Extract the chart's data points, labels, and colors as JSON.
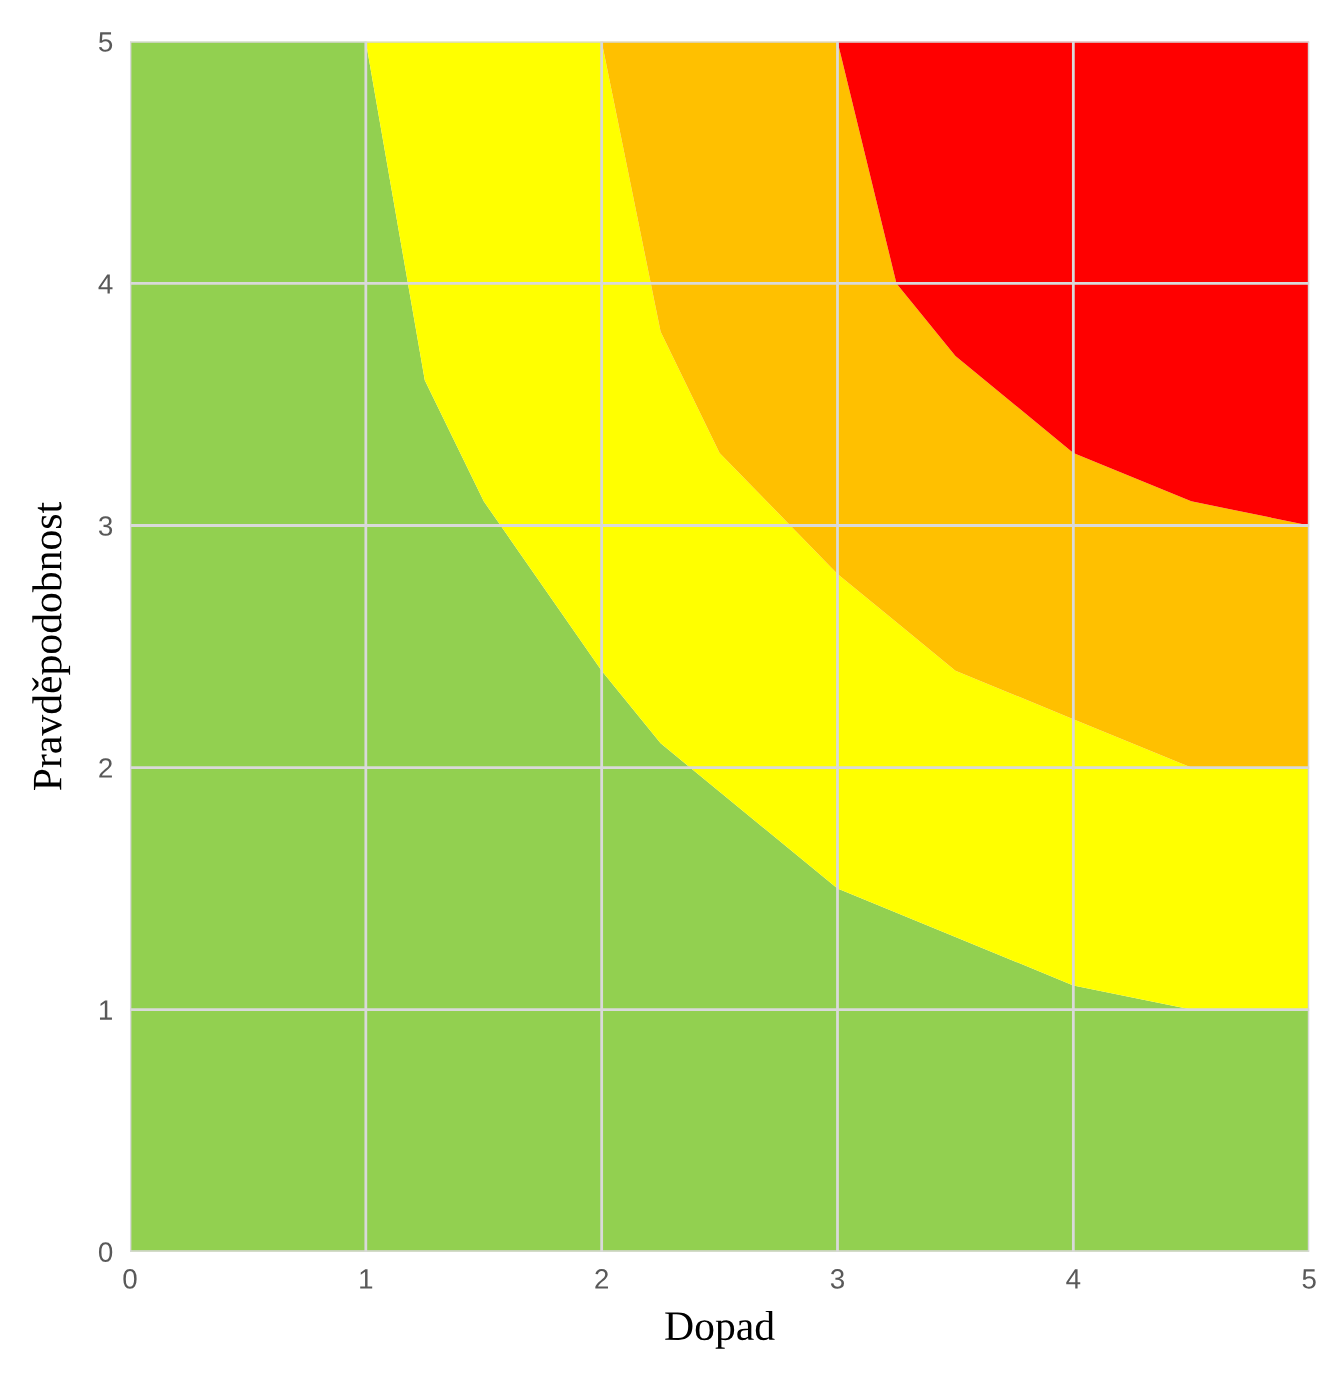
{
  "chart_data": {
    "type": "area",
    "stacked": true,
    "xlabel": "Dopad",
    "ylabel": "Pravděpodobnost",
    "x": [
      0,
      1,
      1.25,
      1.5,
      2,
      2.25,
      2.5,
      3,
      3.25,
      3.5,
      4,
      4.5,
      5
    ],
    "series": [
      {
        "color": "#92d050",
        "values": [
          5,
          5,
          3.6,
          3.1,
          2.4,
          2.1,
          1.9,
          1.5,
          1.4,
          1.3,
          1.1,
          1.0,
          1.0
        ]
      },
      {
        "color": "#ffff00",
        "values": [
          0,
          0,
          1.4,
          1.9,
          2.6,
          1.7,
          1.4,
          1.3,
          1.2,
          1.1,
          1.1,
          1.0,
          1.0
        ]
      },
      {
        "color": "#ffc000",
        "values": [
          0,
          0,
          0,
          0,
          0,
          1.2,
          1.7,
          2.2,
          1.4,
          1.3,
          1.1,
          1.1,
          1.0
        ]
      },
      {
        "color": "#ff0000",
        "values": [
          0,
          0,
          0,
          0,
          0,
          0,
          0,
          0,
          1.0,
          1.3,
          1.7,
          1.9,
          2.0
        ]
      }
    ],
    "xlim": [
      0,
      5
    ],
    "ylim": [
      0,
      5
    ],
    "xticks": [
      0,
      1,
      2,
      3,
      4,
      5
    ],
    "yticks": [
      0,
      1,
      2,
      3,
      4,
      5
    ],
    "grid": true
  }
}
